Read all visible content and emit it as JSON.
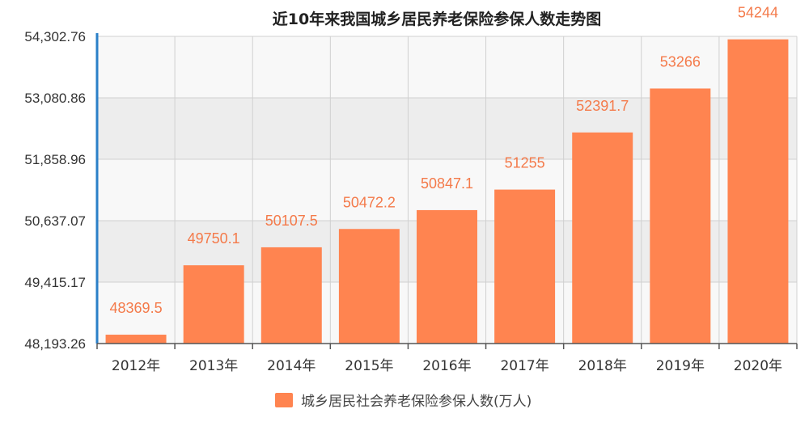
{
  "chart_data": {
    "type": "bar",
    "title": "近10年来我国城乡居民养老保险参保人数走势图",
    "categories": [
      "2012年",
      "2013年",
      "2014年",
      "2015年",
      "2016年",
      "2017年",
      "2018年",
      "2019年",
      "2020年"
    ],
    "series": [
      {
        "name": "城乡居民社会养老保险参保人数(万人)",
        "values": [
          48369.5,
          49750.1,
          50107.5,
          50472.2,
          50847.1,
          51255,
          52391.7,
          53266,
          54244
        ],
        "labels": [
          "48369.5",
          "49750.1",
          "50107.5",
          "50472.2",
          "50847.1",
          "51255",
          "52391.7",
          "53266",
          "54244"
        ]
      }
    ],
    "yticks": [
      "48,193.26",
      "49,415.17",
      "50,637.07",
      "51,858.96",
      "53,080.86",
      "54,302.76"
    ],
    "ylim": [
      48193.26,
      54302.76
    ],
    "grid": true,
    "legend_position": "bottom-center",
    "colors": {
      "bar": "#FF8450",
      "label": "#F47A4A",
      "axis": "#2A7FC8",
      "grid": "#D0D0D0",
      "band_dark": "#EDEDED",
      "band_light": "#F8F8F8"
    }
  }
}
